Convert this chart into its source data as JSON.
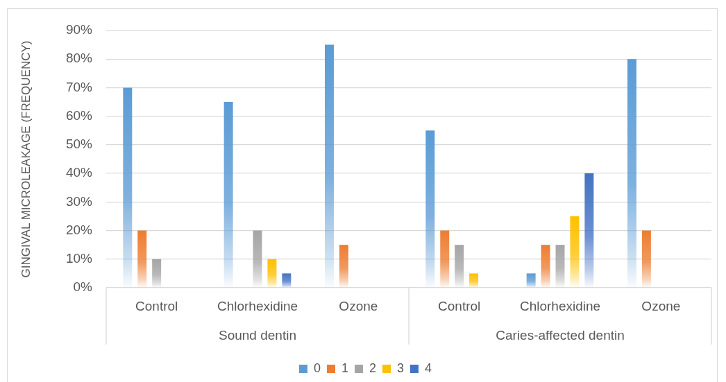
{
  "chart_data": {
    "type": "bar",
    "ylabel": "GINGIVAL MICROLEAKAGE (FREQUENCY)",
    "categories": [
      "Control",
      "Chlorhexidine",
      "Ozone",
      "Control",
      "Chlorhexidine",
      "Ozone"
    ],
    "series": [
      {
        "name": "0",
        "color": "#5b9bd5",
        "values": [
          70,
          65,
          85,
          55,
          5,
          80
        ]
      },
      {
        "name": "1",
        "color": "#ed7d31",
        "values": [
          20,
          0,
          15,
          20,
          15,
          20
        ]
      },
      {
        "name": "2",
        "color": "#a5a5a5",
        "values": [
          10,
          20,
          0,
          15,
          15,
          0
        ]
      },
      {
        "name": "3",
        "color": "#ffc000",
        "values": [
          0,
          10,
          0,
          5,
          25,
          0
        ]
      },
      {
        "name": "4",
        "color": "#4472c4",
        "values": [
          0,
          5,
          0,
          0,
          40,
          0
        ]
      }
    ],
    "ylim": [
      0,
      90
    ],
    "yticks": [
      {
        "value": 0,
        "label": "0%"
      },
      {
        "value": 10,
        "label": "10%"
      },
      {
        "value": 20,
        "label": "20%"
      },
      {
        "value": 30,
        "label": "30%"
      },
      {
        "value": 40,
        "label": "40%"
      },
      {
        "value": 50,
        "label": "50%"
      },
      {
        "value": 60,
        "label": "60%"
      },
      {
        "value": 70,
        "label": "70%"
      },
      {
        "value": 80,
        "label": "80%"
      },
      {
        "value": 90,
        "label": "90%"
      }
    ],
    "grid": "y",
    "legend": "bottom",
    "annotations": [
      "Sound dentin",
      "Caries-affected dentin"
    ]
  }
}
